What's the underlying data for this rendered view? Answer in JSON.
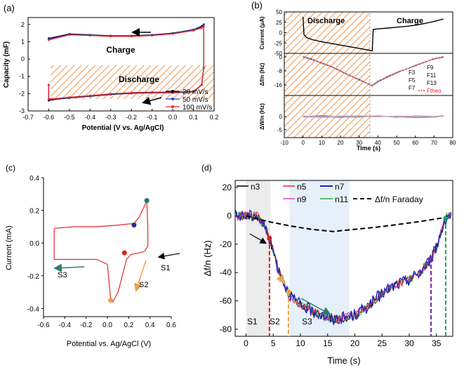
{
  "chart_data": [
    {
      "panel": "(a)",
      "type": "line",
      "xlabel": "Potential (V vs. Ag/AgCl)",
      "ylabel": "Capacity  (mF)",
      "xlim": [
        -0.7,
        0.2
      ],
      "ylim": [
        -3,
        2.4
      ],
      "xticks": [
        "-0.7",
        "-0.6",
        "-0.5",
        "-0.4",
        "-0.3",
        "-0.2",
        "-0.1",
        "0.0",
        "0.1",
        "0.2"
      ],
      "yticks": [
        "-3",
        "-2",
        "-1",
        "0",
        "1",
        "2"
      ],
      "legend": [
        "20 mV/s",
        "50 mV/s",
        "100 mV/s"
      ],
      "colors": [
        "#000000",
        "#2b3fd0",
        "#e8262a"
      ],
      "annotations": [
        "Charge",
        "Discharge"
      ],
      "series": [
        {
          "name": "20 mV/s",
          "x": [
            -0.6,
            -0.5,
            -0.4,
            -0.3,
            -0.2,
            -0.1,
            0.0,
            0.1,
            0.14,
            0.15,
            0.15,
            0.14,
            0.1,
            0.0,
            -0.1,
            -0.2,
            -0.3,
            -0.4,
            -0.5,
            -0.58,
            -0.6,
            -0.6
          ],
          "y": [
            1.2,
            1.45,
            1.4,
            1.35,
            1.35,
            1.4,
            1.5,
            1.7,
            1.9,
            2.0,
            -0.5,
            -1.5,
            -1.9,
            -1.95,
            -1.95,
            -1.98,
            -2.05,
            -2.15,
            -2.25,
            -2.35,
            -2.4,
            -1.5
          ]
        },
        {
          "name": "50 mV/s",
          "x": [
            -0.6,
            -0.5,
            -0.4,
            -0.3,
            -0.2,
            -0.1,
            0.0,
            0.1,
            0.14,
            0.15,
            0.15,
            0.14,
            0.1,
            0.0,
            -0.1,
            -0.2,
            -0.3,
            -0.4,
            -0.5,
            -0.58,
            -0.6,
            -0.6
          ],
          "y": [
            1.15,
            1.42,
            1.38,
            1.33,
            1.33,
            1.38,
            1.48,
            1.68,
            1.85,
            1.95,
            -0.5,
            -1.5,
            -1.88,
            -1.93,
            -1.93,
            -1.96,
            -2.03,
            -2.13,
            -2.23,
            -2.32,
            -2.35,
            -1.5
          ]
        },
        {
          "name": "100 mV/s",
          "x": [
            -0.6,
            -0.5,
            -0.4,
            -0.3,
            -0.2,
            -0.1,
            0.0,
            0.1,
            0.14,
            0.15,
            0.15,
            0.14,
            0.1,
            0.0,
            -0.1,
            -0.2,
            -0.3,
            -0.4,
            -0.5,
            -0.58,
            -0.6,
            -0.6
          ],
          "y": [
            1.1,
            1.4,
            1.36,
            1.31,
            1.31,
            1.36,
            1.46,
            1.65,
            1.8,
            1.9,
            -0.5,
            -1.5,
            -1.86,
            -1.91,
            -1.91,
            -1.94,
            -2.01,
            -2.11,
            -2.21,
            -2.3,
            -2.3,
            -1.5
          ]
        }
      ]
    },
    {
      "panel": "(b)",
      "type": "line",
      "xlabel": "Time (s)",
      "xlim": [
        -10,
        80
      ],
      "xticks": [
        "-10",
        "0",
        "10",
        "20",
        "30",
        "40",
        "50",
        "60",
        "70",
        "80"
      ],
      "annotations": [
        "Discharge",
        "Charge"
      ],
      "subplots": [
        {
          "ylabel": "Current  (μA)",
          "ylim": [
            -50,
            50
          ],
          "yticks": [
            "50",
            "25",
            "0",
            "-25",
            "-50"
          ],
          "x": [
            0,
            0.5,
            2,
            5,
            10,
            15,
            20,
            25,
            30,
            35,
            37,
            37.5,
            40,
            45,
            50,
            55,
            60,
            65,
            70,
            75
          ],
          "y": [
            38,
            -5,
            -12,
            -17,
            -22,
            -26,
            -30,
            -34,
            -38,
            -42,
            -44,
            8,
            9,
            11,
            13,
            15,
            18,
            22,
            27,
            33
          ]
        },
        {
          "ylabel": "Δf/n (Hz)",
          "ylim": [
            -22,
            2
          ],
          "yticks": [
            "0",
            "-8",
            "-16"
          ],
          "legend": [
            "F9",
            "F11",
            "F13",
            "F3",
            "F5",
            "F7",
            "Ftheo"
          ],
          "x": [
            0,
            5,
            10,
            15,
            20,
            25,
            30,
            35,
            37,
            40,
            45,
            50,
            55,
            60,
            65,
            70,
            75
          ],
          "y": [
            0,
            -1.5,
            -3.5,
            -5.5,
            -8,
            -10.5,
            -13,
            -15.5,
            -16.5,
            -14,
            -11.5,
            -9,
            -7,
            -5,
            -3,
            -1,
            0
          ]
        },
        {
          "ylabel": "ΔW/n (Hz)",
          "ylim": [
            -8,
            8
          ],
          "yticks": [
            "0",
            "-5"
          ],
          "x": [
            0,
            10,
            20,
            30,
            40,
            50,
            60,
            70,
            75
          ],
          "y": [
            0,
            0,
            0,
            0,
            0,
            0,
            0,
            0,
            0
          ]
        }
      ]
    },
    {
      "panel": "(c)",
      "type": "line",
      "xlabel": "Potential vs. Ag/AgCl (V)",
      "ylabel": "Current (mA)",
      "xlim": [
        -0.6,
        0.6
      ],
      "ylim": [
        -0.45,
        0.4
      ],
      "xticks": [
        "-0.6",
        "-0.4",
        "-0.2",
        "0.0",
        "0.2",
        "0.4",
        "0.6"
      ],
      "yticks": [
        "-0.4",
        "-0.2",
        "0.0",
        "0.2",
        "0.4"
      ],
      "annotations": [
        "S1",
        "S2",
        "S3"
      ],
      "x": [
        -0.5,
        -0.3,
        -0.1,
        0.1,
        0.25,
        0.3,
        0.35,
        0.37,
        0.38,
        0.38,
        0.35,
        0.3,
        0.22,
        0.18,
        0.14,
        0.1,
        0.05,
        0.03,
        0.0,
        -0.1,
        -0.3,
        -0.5,
        -0.5
      ],
      "y": [
        0.09,
        0.1,
        0.1,
        0.11,
        0.12,
        0.16,
        0.23,
        0.26,
        0.1,
        -0.02,
        -0.05,
        -0.06,
        -0.07,
        -0.1,
        -0.2,
        -0.3,
        -0.36,
        -0.34,
        -0.13,
        -0.1,
        -0.1,
        -0.1,
        0.09
      ],
      "markers": [
        {
          "x": 0.37,
          "y": 0.26,
          "color": "#1f7a6b"
        },
        {
          "x": 0.25,
          "y": 0.11,
          "color": "#2a2a7a"
        },
        {
          "x": 0.16,
          "y": -0.06,
          "color": "#e21b1b"
        },
        {
          "x": 0.03,
          "y": -0.35,
          "color": "#f0a04b"
        }
      ]
    },
    {
      "panel": "(d)",
      "type": "line",
      "xlabel": "Time (s)",
      "ylabel": "Δf/n (Hz)",
      "xlim": [
        -2,
        38
      ],
      "ylim": [
        -85,
        25
      ],
      "xticks": [
        "0",
        "5",
        "10",
        "15",
        "20",
        "25",
        "30",
        "35"
      ],
      "yticks": [
        "20",
        "0",
        "-20",
        "-40",
        "-60",
        "-80"
      ],
      "legend": [
        "n3",
        "n5",
        "n7",
        "n9",
        "n11",
        "Δf/n Faraday"
      ],
      "colors": [
        "#000000",
        "#e8262a",
        "#1a24b8",
        "#e040c8",
        "#2fb040",
        "#000000"
      ],
      "annotations": [
        "S1",
        "S2",
        "S3"
      ],
      "regions": [
        {
          "name": "S1",
          "x": [
            0,
            4.5
          ]
        },
        {
          "name": "S3",
          "x": [
            8,
            19
          ]
        }
      ],
      "vlines": [
        {
          "x": 4.3,
          "color": "#e21b1b"
        },
        {
          "x": 7.8,
          "color": "#f0a04b"
        },
        {
          "x": 34,
          "color": "#6a2fa6"
        },
        {
          "x": 36.7,
          "color": "#1f9e6b"
        }
      ],
      "series": [
        {
          "name": "n7",
          "x": [
            -2,
            0,
            2,
            3,
            4,
            5,
            6,
            7,
            8,
            9,
            10,
            12,
            14,
            15,
            16,
            18,
            20,
            22,
            24,
            26,
            28,
            30,
            32,
            34,
            35,
            36,
            36.5,
            37
          ],
          "y": [
            0,
            0,
            0,
            -5,
            -12,
            -25,
            -38,
            -48,
            -55,
            -60,
            -63,
            -67,
            -70,
            -72,
            -73,
            -72,
            -70,
            -65,
            -58,
            -52,
            -48,
            -45,
            -40,
            -30,
            -22,
            -10,
            -3,
            0
          ]
        },
        {
          "name": "Δf/n Faraday",
          "x": [
            0,
            4,
            8,
            12,
            16,
            20,
            24,
            28,
            32,
            36,
            37
          ],
          "y": [
            0,
            -4,
            -7,
            -9.5,
            -11,
            -9.5,
            -8,
            -6,
            -4,
            -1.5,
            0
          ]
        }
      ]
    }
  ],
  "labels": {
    "a": "(a)",
    "b": "(b)",
    "c": "(c)",
    "d": "(d)",
    "a_charge": "Charge",
    "a_discharge": "Discharge",
    "a_leg1": "20 mV/s",
    "a_leg2": "50 mV/s",
    "a_leg3": "100 mV/s",
    "b_discharge": "Discharge",
    "b_charge": "Charge",
    "b_ylab1": "Current  (μA)",
    "b_ylab2": "Δf/n (Hz)",
    "b_ylab3": "ΔW/n (Hz)",
    "b_F9": "F9",
    "b_F11": "F11",
    "b_F13": "F13",
    "b_F3": "F3",
    "b_F5": "F5",
    "b_F7": "F7",
    "b_Ftheo": "Ftheo",
    "c_S1": "S1",
    "c_S2": "S2",
    "c_S3": "S3",
    "d_S1": "S1",
    "d_S2": "S2",
    "d_S3": "S3",
    "d_n3": "n3",
    "d_n5": "n5",
    "d_n7": "n7",
    "d_n9": "n9",
    "d_n11": "n11",
    "d_faraday": "Δf/n Faraday"
  }
}
